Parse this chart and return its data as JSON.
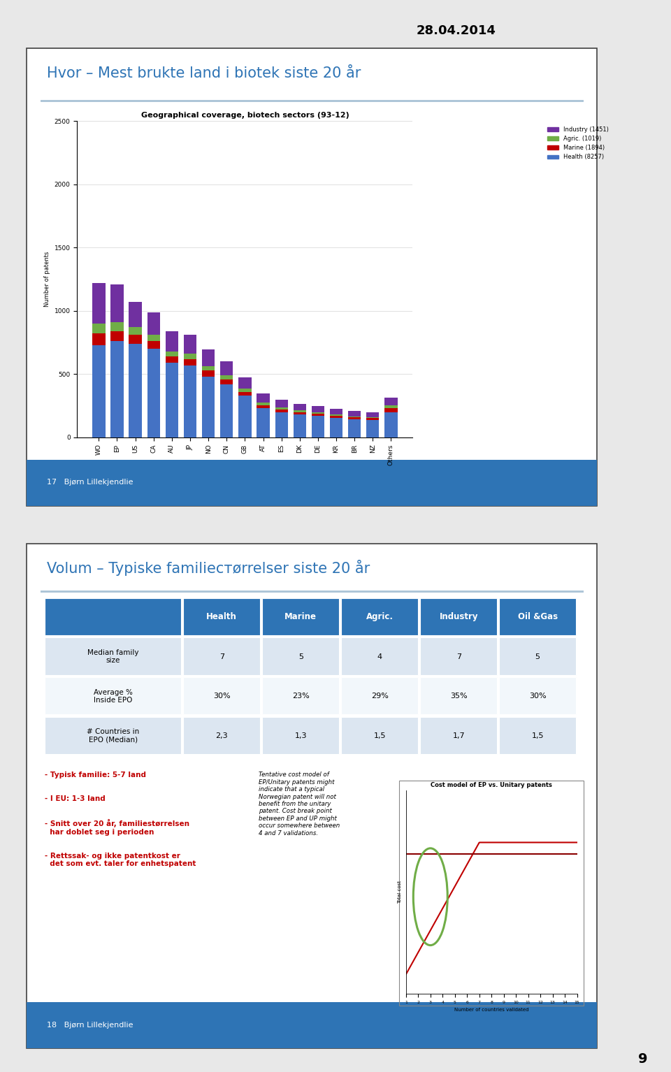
{
  "page_title": "28.04.2014",
  "page_number": "9",
  "slide1": {
    "title": "Hvor – Mest brukte land i biotek siste 20 år",
    "chart_title": "Geographical coverage, biotech sectors (93-12)",
    "categories": [
      "WO",
      "EP",
      "US",
      "CA",
      "AU",
      "JP",
      "NO",
      "CN",
      "GB",
      "AT",
      "ES",
      "DK",
      "DE",
      "KR",
      "BR",
      "NZ",
      "Others"
    ],
    "health": [
      730,
      760,
      740,
      700,
      590,
      570,
      480,
      420,
      330,
      230,
      200,
      180,
      170,
      155,
      145,
      140,
      200
    ],
    "marine": [
      90,
      80,
      70,
      60,
      50,
      50,
      50,
      40,
      30,
      25,
      20,
      18,
      16,
      14,
      12,
      12,
      30
    ],
    "agric": [
      80,
      70,
      60,
      50,
      40,
      40,
      35,
      30,
      25,
      20,
      15,
      14,
      12,
      11,
      10,
      10,
      25
    ],
    "industry": [
      320,
      300,
      200,
      180,
      160,
      150,
      130,
      110,
      90,
      70,
      60,
      55,
      50,
      45,
      40,
      38,
      60
    ],
    "ylabel": "Number of patents",
    "ylim": [
      0,
      2500
    ],
    "yticks": [
      0,
      500,
      1000,
      1500,
      2000,
      2500
    ],
    "legend_labels": [
      "Industry (1451)",
      "Agric. (1019)",
      "Marine (1894)",
      "Health (8257)"
    ],
    "legend_colors": [
      "#7030a0",
      "#70ad47",
      "#c00000",
      "#4472c4"
    ],
    "bar_colors": {
      "health": "#4472c4",
      "marine": "#c00000",
      "agric": "#70ad47",
      "industry": "#7030a0"
    },
    "footer_num": "17",
    "footer_author": "Bjørn Lillekjendlie"
  },
  "slide2": {
    "title": "Volum – Typiske familiестørrelser siste 20 år",
    "table_header": [
      "",
      "Health",
      "Marine",
      "Agric.",
      "Industry",
      "Oil &Gas"
    ],
    "table_rows": [
      [
        "Median family\nsize",
        "7",
        "5",
        "4",
        "7",
        "5"
      ],
      [
        "Average %\nInside EPO",
        "30%",
        "23%",
        "29%",
        "35%",
        "30%"
      ],
      [
        "# Countries in\nEPO (Median)",
        "2,3",
        "1,3",
        "1,5",
        "1,7",
        "1,5"
      ]
    ],
    "header_bg": "#2e74b5",
    "header_fg": "#ffffff",
    "row_bg_even": "#dce6f1",
    "row_bg_odd": "#ffffff",
    "bullet_color": "#c00000",
    "bullets": [
      "- Typisk familie: 5-7 land",
      "- I EU: 1-3 land",
      "- Snitt over 20 år, familiestørrelsen\n  har doblet seg i perioden",
      "- Rettssak- og ikke patentkost er\n  det som evt. taler for enhetspatent"
    ],
    "cost_text": "Tentative cost model of\nEP/Unitary patents might\nindicate that a typical\nNorwegian patent will not\nbenefit from the unitary\npatent. Cost break point\nbetween EP and UP might\noccur somewhere between\n4 and 7 validations.",
    "cost_chart_title": "Cost model of EP vs. Unitary patents",
    "footer_num": "18",
    "footer_author": "Bjørn Lillekjendlie"
  },
  "slide_bg": "#ffffff",
  "slide_border": "#404040",
  "title_color": "#2e74b5",
  "footer_bg": "#2e74b5",
  "footer_fg": "#ffffff",
  "page_bg": "#e8e8e8"
}
